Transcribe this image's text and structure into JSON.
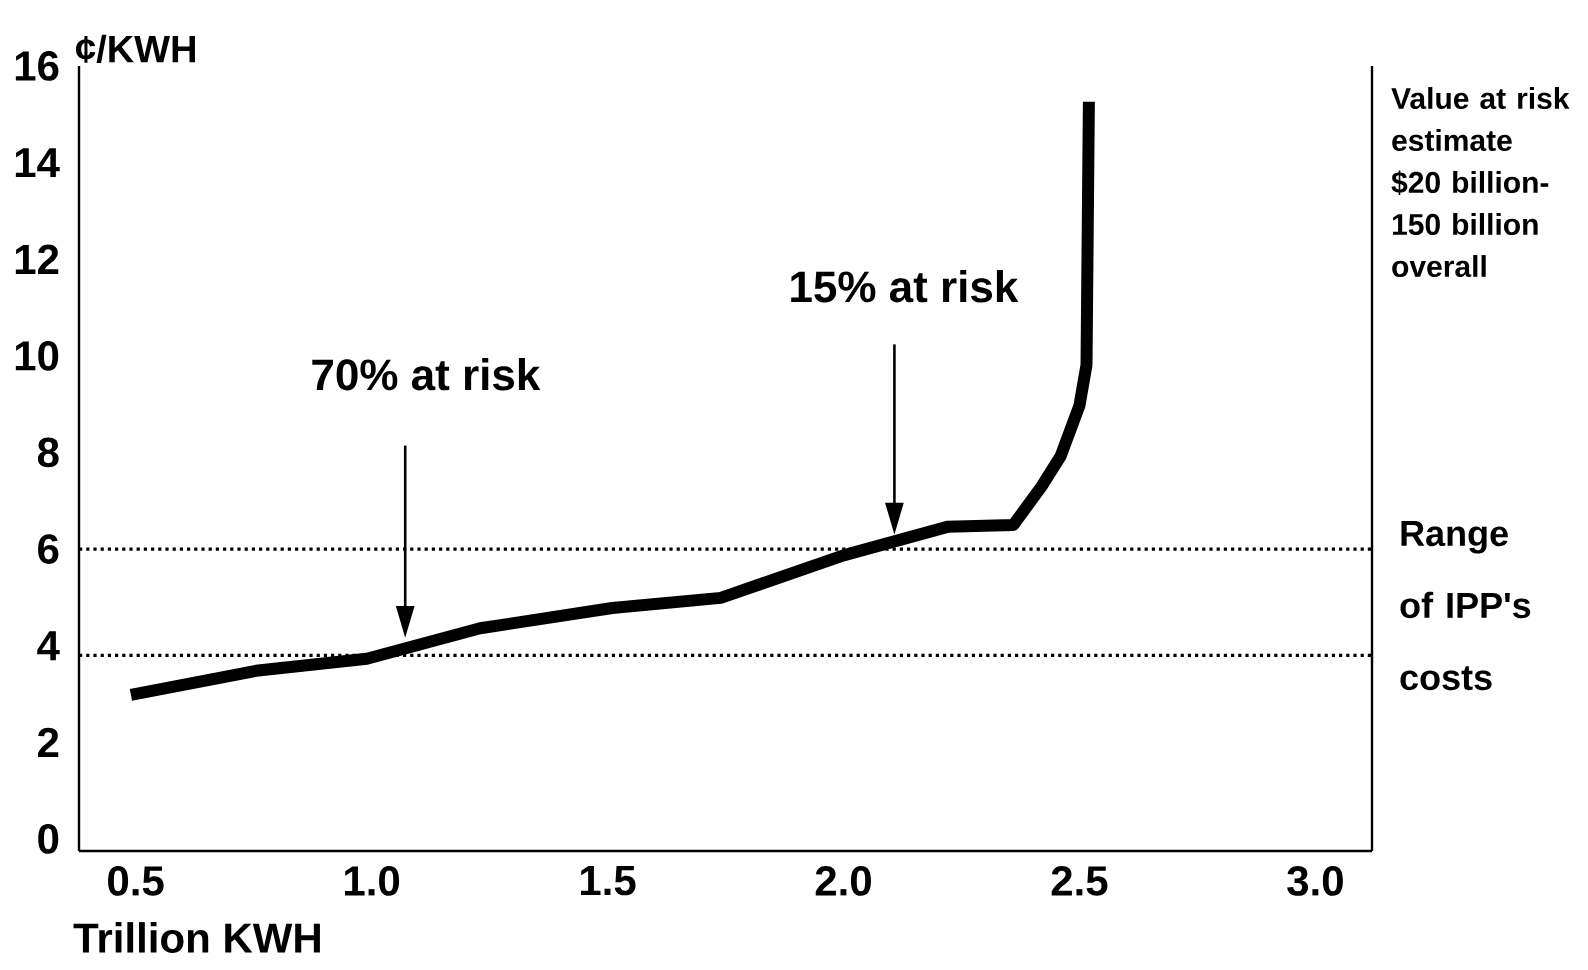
{
  "chart_data": {
    "type": "line",
    "ylabel": "¢/KWH",
    "xlabel": "Trillion KWH",
    "color": "#000000",
    "x": [
      0.49,
      0.755,
      0.99,
      1.23,
      1.51,
      1.74,
      2.0,
      2.22,
      2.36,
      2.42,
      2.46,
      2.5,
      2.515,
      2.52
    ],
    "values": [
      2.98,
      3.48,
      3.73,
      4.36,
      4.78,
      4.99,
      5.87,
      6.46,
      6.5,
      7.3,
      7.92,
      8.97,
      9.81,
      15.26
    ],
    "xlim": [
      0.38,
      3.12
    ],
    "ylim": [
      -0.25,
      16
    ],
    "xticks": [
      0.5,
      {
        "value": 1,
        "label": "1.0"
      },
      1.5,
      {
        "value": 2,
        "label": "2.0"
      },
      2.5,
      {
        "value": 3,
        "label": "3.0"
      }
    ],
    "yticks": [
      0,
      2,
      4,
      6,
      8,
      10,
      12,
      14,
      16
    ],
    "ref_lines": [
      {
        "axis": "y",
        "value": 3.8,
        "line_style": "dotted"
      },
      {
        "axis": "y",
        "value": 6,
        "line_style": "dotted"
      }
    ],
    "annotations": [
      "70% at risk",
      "15% at risk",
      "Value at risk estimate $20 billion-150 billion overall",
      "Range of IPP's costs"
    ]
  }
}
